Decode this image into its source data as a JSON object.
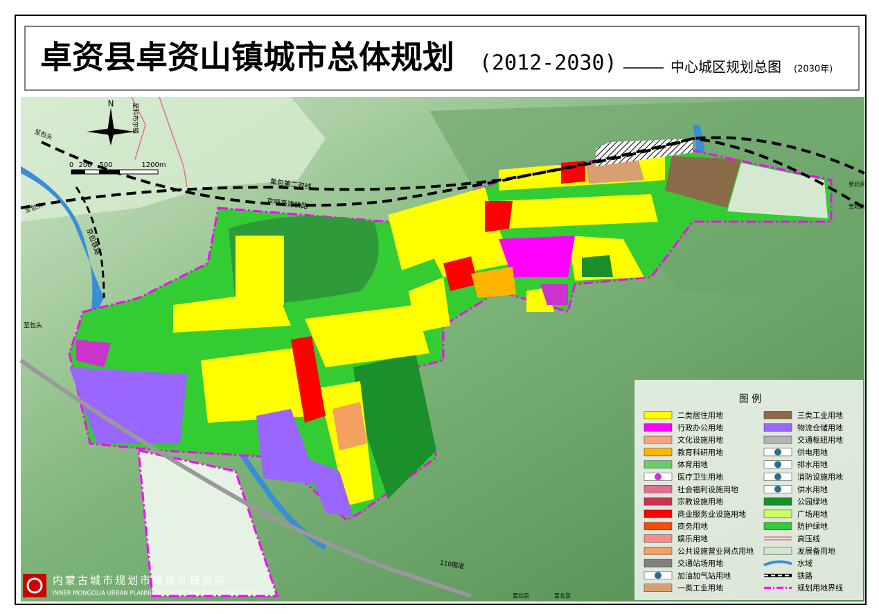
{
  "header": {
    "title": "卓资县卓资山镇城市总体规划",
    "years": "(2012-2030)",
    "subtitle": "中心城区规划总图",
    "subtitle_year": "(2030年)"
  },
  "map_labels": {
    "north": "N",
    "scale": [
      "0",
      "200",
      "500",
      "1200m"
    ],
    "to_baotou_1": "至包头",
    "to_baotou_2": "至包头",
    "to_baotou_3": "至包头",
    "jingbao_railway": "京包铁路",
    "jibao_line": "集包第二双线",
    "jinghu_rail": "京呼高速铁路",
    "to_kebuer": "至科布尔镇",
    "national_road": "110国道",
    "to_beijing_1": "至北京",
    "to_beijing_2": "至北京",
    "to_beijing_3": "至北京",
    "to_beijing_4": "至北京"
  },
  "legend": {
    "title": "图 例",
    "items": [
      {
        "label": "二类居住用地",
        "color": "#ffff00",
        "kind": "fill"
      },
      {
        "label": "行政办公用地",
        "color": "#ff00ff",
        "kind": "fill"
      },
      {
        "label": "文化设施用地",
        "color": "#f4a582",
        "kind": "fill"
      },
      {
        "label": "教育科研用地",
        "color": "#ffb400",
        "kind": "fill"
      },
      {
        "label": "体育用地",
        "color": "#66cc66",
        "kind": "fill"
      },
      {
        "label": "医疗卫生用地",
        "color": "#cc33cc",
        "kind": "symbol"
      },
      {
        "label": "社会福利设施用地",
        "color": "#e07090",
        "kind": "fill"
      },
      {
        "label": "宗教设施用地",
        "color": "#cc3355",
        "kind": "fill"
      },
      {
        "label": "商业服务业设施用地",
        "color": "#ff0000",
        "kind": "fill"
      },
      {
        "label": "商务用地",
        "color": "#ff4a00",
        "kind": "fill"
      },
      {
        "label": "娱乐用地",
        "color": "#ff8a8a",
        "kind": "fill"
      },
      {
        "label": "公共设施营业网点用地",
        "color": "#f4a060",
        "kind": "fill"
      },
      {
        "label": "交通站场用地",
        "color": "#808080",
        "kind": "fill"
      },
      {
        "label": "加油加气站用地",
        "color": "#2a6e8a",
        "kind": "symbol"
      },
      {
        "label": "一类工业用地",
        "color": "#d8a070",
        "kind": "fill"
      },
      {
        "label": "三类工业用地",
        "color": "#8b6a4a",
        "kind": "fill"
      },
      {
        "label": "物流仓储用地",
        "color": "#9966ff",
        "kind": "fill"
      },
      {
        "label": "交通枢纽用地",
        "color": "#b4b4b4",
        "kind": "fill"
      },
      {
        "label": "供电用地",
        "color": "#2a6e8a",
        "kind": "symbol"
      },
      {
        "label": "排水用地",
        "color": "#2a6e8a",
        "kind": "symbol"
      },
      {
        "label": "消防设施用地",
        "color": "#2a6e8a",
        "kind": "symbol"
      },
      {
        "label": "供水用地",
        "color": "#2a6e8a",
        "kind": "symbol"
      },
      {
        "label": "公园绿地",
        "color": "#1a8f2a",
        "kind": "fill"
      },
      {
        "label": "广场用地",
        "color": "#ccff66",
        "kind": "fill"
      },
      {
        "label": "防护绿地",
        "color": "#33cc33",
        "kind": "fill"
      },
      {
        "label": "高压线",
        "color": "#e07090",
        "kind": "line"
      },
      {
        "label": "发展备用地",
        "color": "#cfe8cf",
        "kind": "fill"
      },
      {
        "label": "水域",
        "color": "#3a8ed8",
        "kind": "water"
      },
      {
        "label": "铁路",
        "color": "#000000",
        "kind": "rail"
      },
      {
        "label": "规划用地界线",
        "color": "#ff00ff",
        "kind": "dash"
      }
    ]
  },
  "institute": {
    "name": "内蒙古城市规划市政设计研究院",
    "name_en": "INNER MONGOLIA URBAN PLANNING & MUNICIPAL DESIGN INSTITUTE"
  }
}
